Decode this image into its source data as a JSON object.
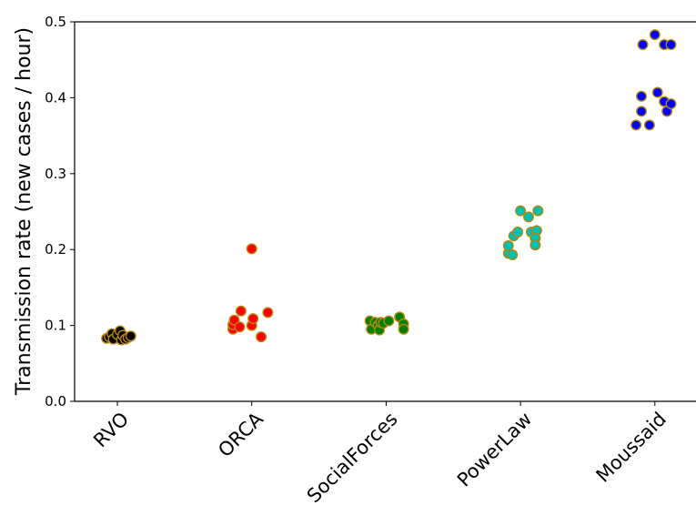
{
  "chart_data": {
    "type": "scatter",
    "title": "",
    "xlabel": "",
    "ylabel": "Transmission rate (new cases / hour)",
    "ylim": [
      0,
      0.5
    ],
    "yticks": [
      0.0,
      0.1,
      0.2,
      0.3,
      0.4,
      0.5
    ],
    "ytick_labels": [
      "0.0",
      "0.1",
      "0.2",
      "0.3",
      "0.4",
      "0.5"
    ],
    "grid": false,
    "marker_edge_color": "#b8860b",
    "categories": [
      "RVO",
      "ORCA",
      "SocialForces",
      "PowerLaw",
      "Moussaid"
    ],
    "series": [
      {
        "category": "RVO",
        "color": "#000000",
        "points": [
          {
            "jitter": -0.08,
            "y": 0.083
          },
          {
            "jitter": -0.06,
            "y": 0.085
          },
          {
            "jitter": -0.04,
            "y": 0.089
          },
          {
            "jitter": -0.03,
            "y": 0.082
          },
          {
            "jitter": 0.0,
            "y": 0.088
          },
          {
            "jitter": 0.02,
            "y": 0.093
          },
          {
            "jitter": 0.03,
            "y": 0.081
          },
          {
            "jitter": 0.04,
            "y": 0.087
          },
          {
            "jitter": 0.06,
            "y": 0.082
          },
          {
            "jitter": 0.08,
            "y": 0.084
          },
          {
            "jitter": 0.1,
            "y": 0.086
          }
        ]
      },
      {
        "category": "ORCA",
        "color": "#ff0000",
        "points": [
          {
            "jitter": -0.14,
            "y": 0.095
          },
          {
            "jitter": -0.14,
            "y": 0.101
          },
          {
            "jitter": -0.13,
            "y": 0.107
          },
          {
            "jitter": -0.09,
            "y": 0.098
          },
          {
            "jitter": -0.08,
            "y": 0.119
          },
          {
            "jitter": 0.0,
            "y": 0.201
          },
          {
            "jitter": 0.0,
            "y": 0.1
          },
          {
            "jitter": 0.01,
            "y": 0.109
          },
          {
            "jitter": 0.07,
            "y": 0.085
          },
          {
            "jitter": 0.12,
            "y": 0.117
          }
        ]
      },
      {
        "category": "SocialForces",
        "color": "#008000",
        "points": [
          {
            "jitter": -0.12,
            "y": 0.106
          },
          {
            "jitter": -0.11,
            "y": 0.095
          },
          {
            "jitter": -0.08,
            "y": 0.104
          },
          {
            "jitter": -0.06,
            "y": 0.1
          },
          {
            "jitter": -0.05,
            "y": 0.094
          },
          {
            "jitter": -0.04,
            "y": 0.104
          },
          {
            "jitter": -0.02,
            "y": 0.103
          },
          {
            "jitter": 0.02,
            "y": 0.106
          },
          {
            "jitter": 0.1,
            "y": 0.111
          },
          {
            "jitter": 0.13,
            "y": 0.102
          },
          {
            "jitter": 0.13,
            "y": 0.095
          }
        ]
      },
      {
        "category": "PowerLaw",
        "color": "#00bfb3",
        "points": [
          {
            "jitter": -0.09,
            "y": 0.195
          },
          {
            "jitter": -0.06,
            "y": 0.193
          },
          {
            "jitter": -0.09,
            "y": 0.205
          },
          {
            "jitter": -0.05,
            "y": 0.218
          },
          {
            "jitter": -0.02,
            "y": 0.223
          },
          {
            "jitter": 0.0,
            "y": 0.251
          },
          {
            "jitter": 0.06,
            "y": 0.243
          },
          {
            "jitter": 0.08,
            "y": 0.223
          },
          {
            "jitter": 0.12,
            "y": 0.225
          },
          {
            "jitter": 0.13,
            "y": 0.251
          },
          {
            "jitter": 0.11,
            "y": 0.215
          },
          {
            "jitter": 0.11,
            "y": 0.206
          }
        ]
      },
      {
        "category": "Moussaid",
        "color": "#0000ff",
        "points": [
          {
            "jitter": -0.14,
            "y": 0.364
          },
          {
            "jitter": -0.1,
            "y": 0.382
          },
          {
            "jitter": -0.1,
            "y": 0.402
          },
          {
            "jitter": -0.09,
            "y": 0.47
          },
          {
            "jitter": -0.04,
            "y": 0.364
          },
          {
            "jitter": 0.0,
            "y": 0.483
          },
          {
            "jitter": 0.02,
            "y": 0.407
          },
          {
            "jitter": 0.07,
            "y": 0.395
          },
          {
            "jitter": 0.07,
            "y": 0.47
          },
          {
            "jitter": 0.09,
            "y": 0.382
          },
          {
            "jitter": 0.12,
            "y": 0.392
          },
          {
            "jitter": 0.12,
            "y": 0.47
          }
        ]
      }
    ]
  }
}
